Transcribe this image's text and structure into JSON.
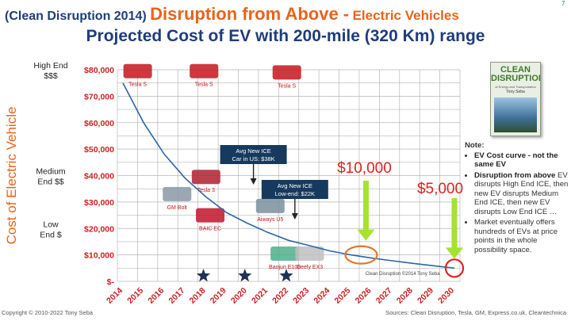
{
  "header": {
    "prefix": "(Clean Disruption 2014)",
    "main_title": "Disruption from Above -",
    "main_suffix": "Electric Vehicles",
    "subtitle": "Projected Cost of EV with 200-mile (320 Km) range",
    "corner_mark": "7"
  },
  "colors": {
    "title_blue": "#1f3d7a",
    "title_orange": "#e8631a",
    "tick_red": "#cc1f1f",
    "curve": "#2c65a8",
    "callout_box": "#163a5e",
    "arrow_green": "#a6e22e",
    "highlight_orange": "#e0782a",
    "highlight_red": "#e02020",
    "star": "#1f3256"
  },
  "chart_data": {
    "type": "line",
    "x": [
      2014,
      2015,
      2016,
      2017,
      2018,
      2019,
      2020,
      2021,
      2022,
      2023,
      2024,
      2025,
      2026,
      2027,
      2028,
      2029,
      2030
    ],
    "series": [
      {
        "values": [
          75000,
          60000,
          48000,
          39000,
          32000,
          26000,
          22000,
          18500,
          15500,
          13500,
          11500,
          10000,
          8800,
          7800,
          6800,
          5900,
          5000
        ]
      }
    ],
    "categories": [
      "2014",
      "2015",
      "2016",
      "2017",
      "2018",
      "2019",
      "2020",
      "2021",
      "2022",
      "2023",
      "2024",
      "2025",
      "2026",
      "2027",
      "2028",
      "2029",
      "2030"
    ],
    "ylim": [
      0,
      80000
    ],
    "y_ticks": [
      {
        "value": 0,
        "label": "$-"
      },
      {
        "value": 10000,
        "label": "$10,000"
      },
      {
        "value": 20000,
        "label": "$20,000"
      },
      {
        "value": 30000,
        "label": "$30,000"
      },
      {
        "value": 40000,
        "label": "$40,000"
      },
      {
        "value": 50000,
        "label": "$50,000"
      },
      {
        "value": 60000,
        "label": "$60,000"
      },
      {
        "value": 70000,
        "label": "$70,000"
      },
      {
        "value": 80000,
        "label": "$80,000"
      }
    ],
    "ylabel": "Cost of Electric Vehicle",
    "grid": true,
    "segment_labels": [
      {
        "text": "High End",
        "text2": "$$$",
        "y": 80000
      },
      {
        "text": "Medium",
        "text2": "End $$",
        "y": 40000
      },
      {
        "text": "Low",
        "text2": "End $",
        "y": 20000
      }
    ],
    "car_labels": [
      {
        "text": "Tesla S",
        "x": 2014.1,
        "y": 75000
      },
      {
        "text": "Tesla S",
        "x": 2017.3,
        "y": 75000
      },
      {
        "text": "Tesla S",
        "x": 2021.3,
        "y": 74500
      },
      {
        "text": "GM Bolt",
        "x": 2016.0,
        "y": 28500
      },
      {
        "text": "Tesla 3",
        "x": 2017.4,
        "y": 35000
      },
      {
        "text": "BAIC EC",
        "x": 2017.6,
        "y": 20500
      },
      {
        "text": "Aiways U5",
        "x": 2020.5,
        "y": 24000
      },
      {
        "text": "Baojun E100",
        "x": 2021.2,
        "y": 6000
      },
      {
        "text": "Geely EX3",
        "x": 2022.4,
        "y": 6000
      }
    ],
    "callouts": [
      {
        "line1": "Avg New ICE",
        "line2": "Car in US: $38K",
        "x": 2020.3
      },
      {
        "line1": "Avg New ICE",
        "line2": "Low-end: $22K",
        "x": 2022.3
      }
    ],
    "price_markers": [
      {
        "text": "$10,000",
        "x": 2025.5,
        "y": 10000
      },
      {
        "text": "$5,000",
        "x": 2030,
        "y": 5000
      }
    ],
    "star_years": [
      2018,
      2020,
      2022
    ],
    "watermark": "Clean Disruption ©2014 Tony Seba"
  },
  "book": {
    "title_line1": "CLEAN",
    "title_line2": "DISRUPTION",
    "subtitle": "of Energy and Transportation",
    "author": "Tony Seba"
  },
  "note": {
    "heading": "Note:",
    "items": [
      {
        "bold": "EV Cost curve - not the same EV",
        "rest": ""
      },
      {
        "bold": "Disruption from above",
        "rest": " EV disrupts High End ICE, then new EV disrupts Medium End ICE, then new EV disrupts Low End ICE …"
      },
      {
        "bold": "",
        "rest": "Market eventually offers hundreds of EVs at price points in the whole possibility space."
      }
    ]
  },
  "footer": {
    "copyright": "Copyright © 2010-2022 Tony Seba",
    "sources": "Sources: Clean Disruption, Tesla, GM, Express.co.uk, Cleantechnica"
  }
}
